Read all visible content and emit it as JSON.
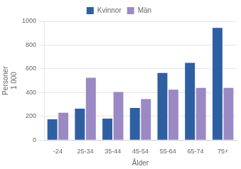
{
  "chart_data": {
    "type": "bar",
    "categories": [
      "-24",
      "25-34",
      "35-44",
      "45-54",
      "55-64",
      "65-74",
      "75+"
    ],
    "series": [
      {
        "name": "Kvinnor",
        "color": "#2e5fa3",
        "values": [
          175,
          265,
          180,
          270,
          565,
          650,
          945
        ]
      },
      {
        "name": "Män",
        "color": "#9b89c4",
        "values": [
          230,
          525,
          405,
          345,
          425,
          440,
          440
        ]
      }
    ],
    "xlabel": "Ålder",
    "ylabel": [
      "Personer",
      "1 000"
    ],
    "ylim": [
      0,
      1000
    ],
    "yticks": [
      0,
      200,
      400,
      600,
      800,
      1000
    ],
    "grid": true,
    "legend": "top"
  }
}
